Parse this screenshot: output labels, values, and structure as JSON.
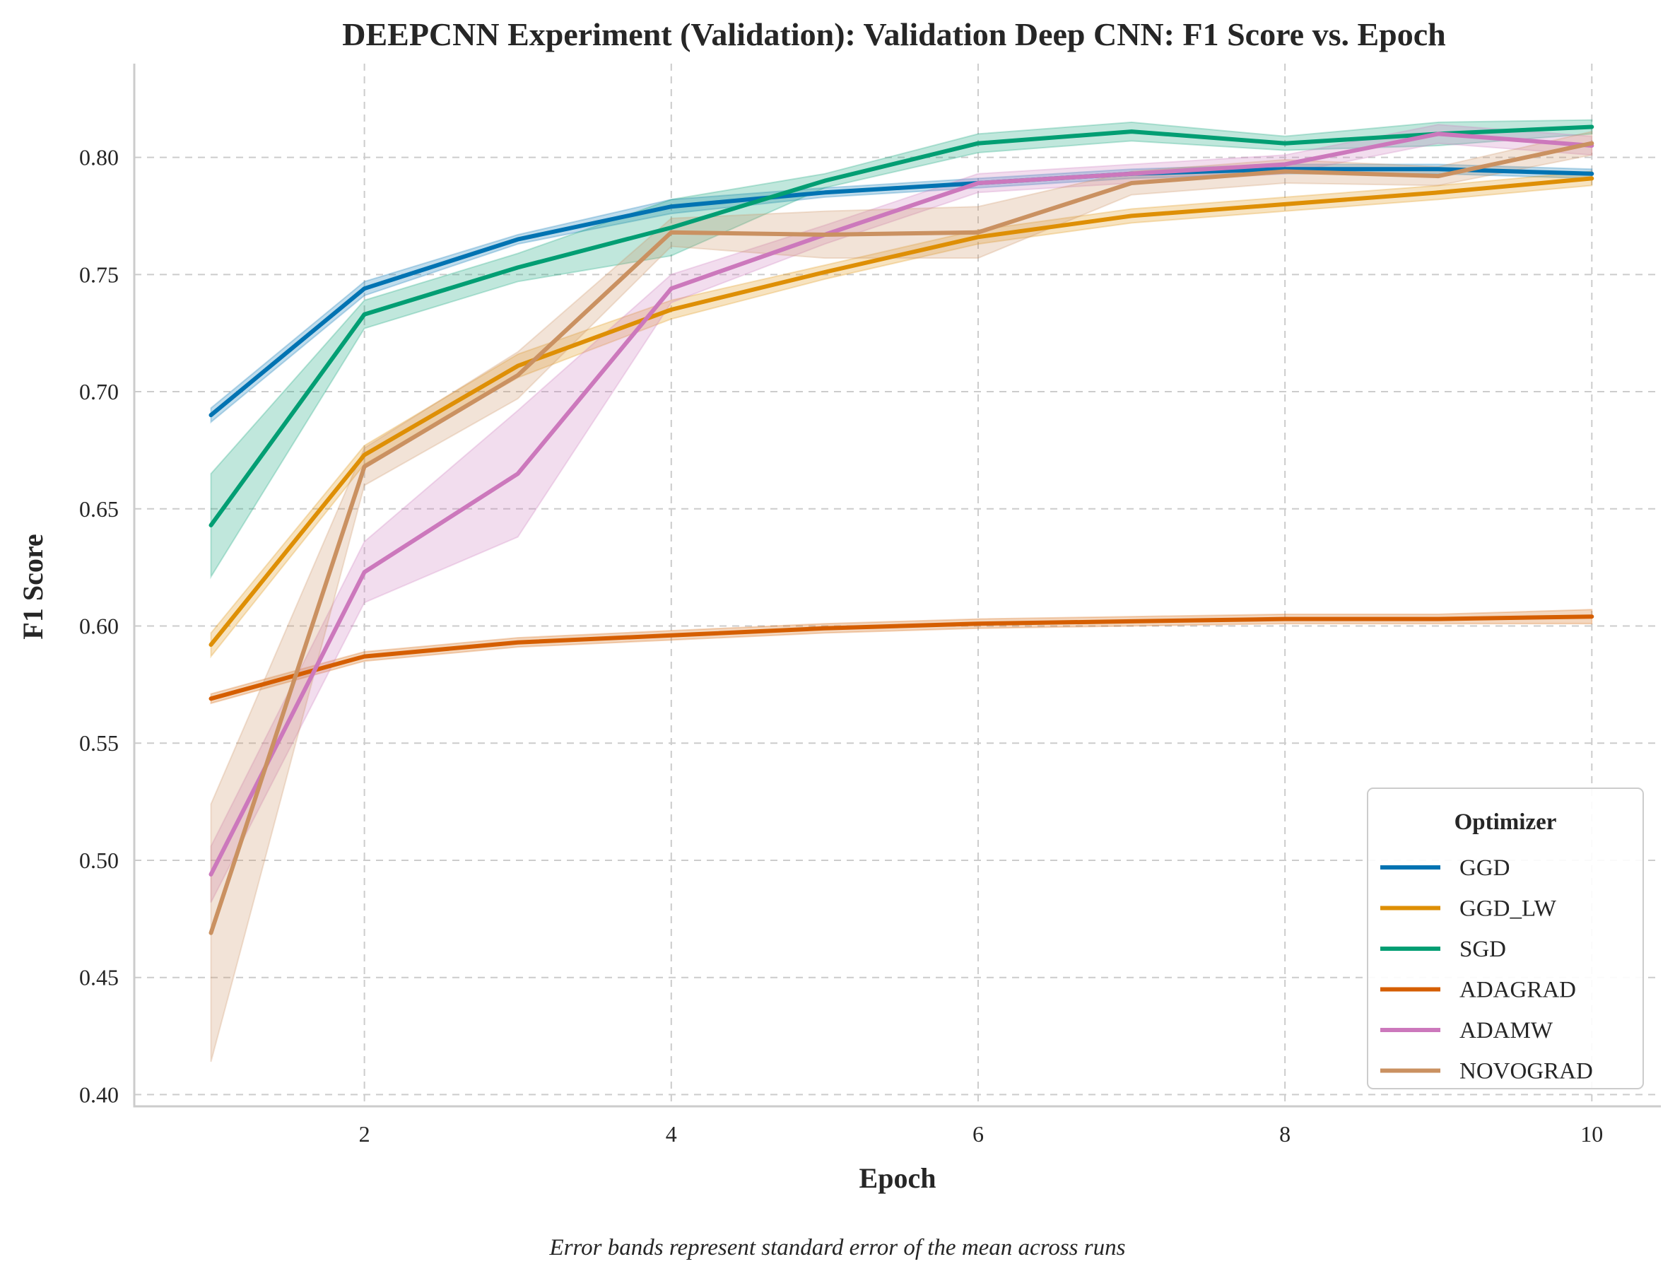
{
  "chart_data": {
    "type": "line",
    "title": "DEEPCNN Experiment (Validation): Validation Deep CNN: F1 Score vs. Epoch",
    "xlabel": "Epoch",
    "ylabel": "F1 Score",
    "caption": "Error bands represent standard error of the mean across runs",
    "xlim": [
      0.5,
      10.45
    ],
    "ylim": [
      0.395,
      0.84
    ],
    "xticks": [
      2,
      4,
      6,
      8,
      10
    ],
    "yticks": [
      0.4,
      0.45,
      0.5,
      0.55,
      0.6,
      0.65,
      0.7,
      0.75,
      0.8
    ],
    "ytick_labels": [
      "0.40",
      "0.45",
      "0.50",
      "0.55",
      "0.60",
      "0.65",
      "0.70",
      "0.75",
      "0.80"
    ],
    "xtick_labels": [
      "2",
      "4",
      "6",
      "8",
      "10"
    ],
    "grid": true,
    "legend": {
      "title": "Optimizer",
      "placement": "bottom-right"
    },
    "x": [
      1,
      2,
      3,
      4,
      5,
      6,
      7,
      8,
      9,
      10
    ],
    "series": [
      {
        "name": "GGD",
        "color": "#0173b2",
        "values": [
          0.69,
          0.744,
          0.765,
          0.779,
          0.785,
          0.789,
          0.793,
          0.795,
          0.795,
          0.793
        ],
        "err": [
          0.003,
          0.003,
          0.002,
          0.003,
          0.002,
          0.002,
          0.002,
          0.002,
          0.002,
          0.002
        ]
      },
      {
        "name": "GGD_LW",
        "color": "#de8f05",
        "values": [
          0.592,
          0.673,
          0.711,
          0.735,
          0.751,
          0.766,
          0.775,
          0.78,
          0.785,
          0.791
        ],
        "err": [
          0.005,
          0.004,
          0.005,
          0.004,
          0.003,
          0.003,
          0.003,
          0.003,
          0.003,
          0.003
        ]
      },
      {
        "name": "SGD",
        "color": "#029e73",
        "values": [
          0.643,
          0.733,
          0.753,
          0.77,
          0.79,
          0.806,
          0.811,
          0.806,
          0.81,
          0.813
        ],
        "err": [
          0.022,
          0.006,
          0.006,
          0.012,
          0.003,
          0.004,
          0.004,
          0.003,
          0.005,
          0.003
        ]
      },
      {
        "name": "ADAGRAD",
        "color": "#d55e00",
        "values": [
          0.569,
          0.587,
          0.593,
          0.596,
          0.599,
          0.601,
          0.602,
          0.603,
          0.603,
          0.604
        ],
        "err": [
          0.002,
          0.002,
          0.002,
          0.002,
          0.002,
          0.002,
          0.002,
          0.002,
          0.002,
          0.003
        ]
      },
      {
        "name": "ADAMW",
        "color": "#cc78bc",
        "values": [
          0.494,
          0.623,
          0.665,
          0.744,
          0.767,
          0.789,
          0.793,
          0.797,
          0.81,
          0.805
        ],
        "err": [
          0.012,
          0.013,
          0.027,
          0.006,
          0.004,
          0.004,
          0.004,
          0.004,
          0.004,
          0.004
        ]
      },
      {
        "name": "NOVOGRAD",
        "color": "#ca9161",
        "values": [
          0.469,
          0.668,
          0.707,
          0.768,
          0.767,
          0.768,
          0.789,
          0.794,
          0.792,
          0.806
        ],
        "err": [
          0.055,
          0.008,
          0.01,
          0.006,
          0.01,
          0.011,
          0.005,
          0.005,
          0.004,
          0.005
        ]
      }
    ]
  }
}
